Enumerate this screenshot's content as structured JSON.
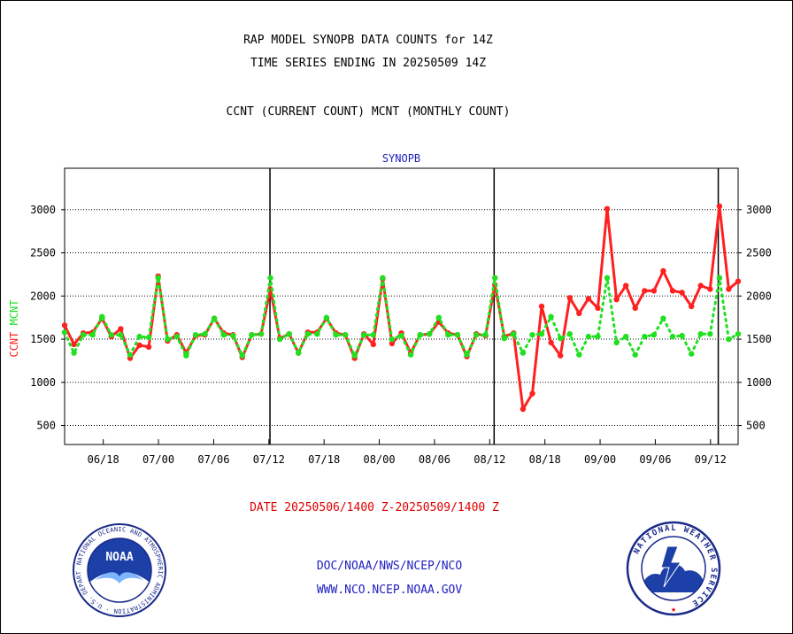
{
  "header": {
    "title_line1": "RAP MODEL SYNOPB DATA COUNTS for 14Z",
    "title_line2": "TIME SERIES ENDING IN 20250509 14Z",
    "subtitle": "CCNT (CURRENT COUNT) MCNT (MONTHLY COUNT)"
  },
  "footer": {
    "date_range": "DATE 20250506/1400 Z-20250509/1400 Z",
    "line1": "DOC/NOAA/NWS/NCEP/NCO",
    "line2": "WWW.NCO.NCEP.NOAA.GOV"
  },
  "logos": {
    "noaa_text": "NOAA",
    "noaa_ring_text": "NATIONAL OCEANIC AND ATMOSPHERIC ADMINISTRATION · U.S. DEPARTMENT OF COMMERCE ·",
    "nws_ring_text": "NATIONAL WEATHER SERVICE"
  },
  "colors": {
    "ccnt": "#ff2020",
    "mcnt": "#20e020",
    "title_text": "#000000",
    "date_text": "#e00000",
    "footer_text": "#2020c0",
    "panel_label": "#2020c0"
  },
  "chart_data": {
    "type": "line",
    "title": "SYNOPB",
    "ylabel_parts": [
      "CCNT",
      "MCNT"
    ],
    "ylim": [
      280,
      3480
    ],
    "yticks": [
      500,
      1000,
      1500,
      2000,
      2500,
      3000
    ],
    "xlim": [
      0,
      61
    ],
    "xticks": [
      {
        "x": 3.5,
        "label": "06/18"
      },
      {
        "x": 8.5,
        "label": "07/00"
      },
      {
        "x": 13.5,
        "label": "07/06"
      },
      {
        "x": 18.5,
        "label": "07/12"
      },
      {
        "x": 23.5,
        "label": "07/18"
      },
      {
        "x": 28.5,
        "label": "08/00"
      },
      {
        "x": 33.5,
        "label": "08/06"
      },
      {
        "x": 38.5,
        "label": "08/12"
      },
      {
        "x": 43.5,
        "label": "08/18"
      },
      {
        "x": 48.5,
        "label": "09/00"
      },
      {
        "x": 53.5,
        "label": "09/06"
      },
      {
        "x": 58.5,
        "label": "09/12"
      }
    ],
    "day_dividers": [
      18.6,
      38.9,
      59.2
    ],
    "grid": "horizontal-dotted",
    "series": [
      {
        "name": "CCNT",
        "color": "#ff2020",
        "style": "solid",
        "values": [
          1660,
          1440,
          1570,
          1580,
          1740,
          1530,
          1620,
          1280,
          1430,
          1410,
          2230,
          1480,
          1550,
          1340,
          1540,
          1550,
          1740,
          1570,
          1550,
          1290,
          1550,
          1560,
          2080,
          1510,
          1560,
          1340,
          1580,
          1580,
          1740,
          1570,
          1550,
          1280,
          1560,
          1440,
          2200,
          1450,
          1570,
          1340,
          1550,
          1560,
          1700,
          1570,
          1550,
          1300,
          1560,
          1540,
          2130,
          1530,
          1570,
          690,
          870,
          1880,
          1460,
          1310,
          1980,
          1800,
          1970,
          1860,
          3010,
          1960,
          2120,
          1860,
          2060,
          2060,
          2290,
          2060,
          2040,
          1880,
          2120,
          2080,
          3040,
          2080,
          2170
        ]
      },
      {
        "name": "MCNT",
        "color": "#20e020",
        "style": "dotted",
        "values": [
          1580,
          1340,
          1550,
          1550,
          1760,
          1550,
          1550,
          1320,
          1530,
          1520,
          2210,
          1500,
          1530,
          1310,
          1550,
          1560,
          1740,
          1550,
          1540,
          1310,
          1550,
          1560,
          2210,
          1500,
          1560,
          1340,
          1560,
          1560,
          1750,
          1550,
          1550,
          1310,
          1550,
          1550,
          2210,
          1500,
          1540,
          1320,
          1550,
          1560,
          1750,
          1550,
          1550,
          1320,
          1550,
          1550,
          2210,
          1510,
          1560,
          1340,
          1550,
          1560,
          1760,
          1510,
          1560,
          1320,
          1530,
          1530,
          2210,
          1460,
          1530,
          1320,
          1530,
          1550,
          1740,
          1530,
          1540,
          1330,
          1560,
          1560,
          2210,
          1500,
          1560
        ]
      }
    ]
  }
}
